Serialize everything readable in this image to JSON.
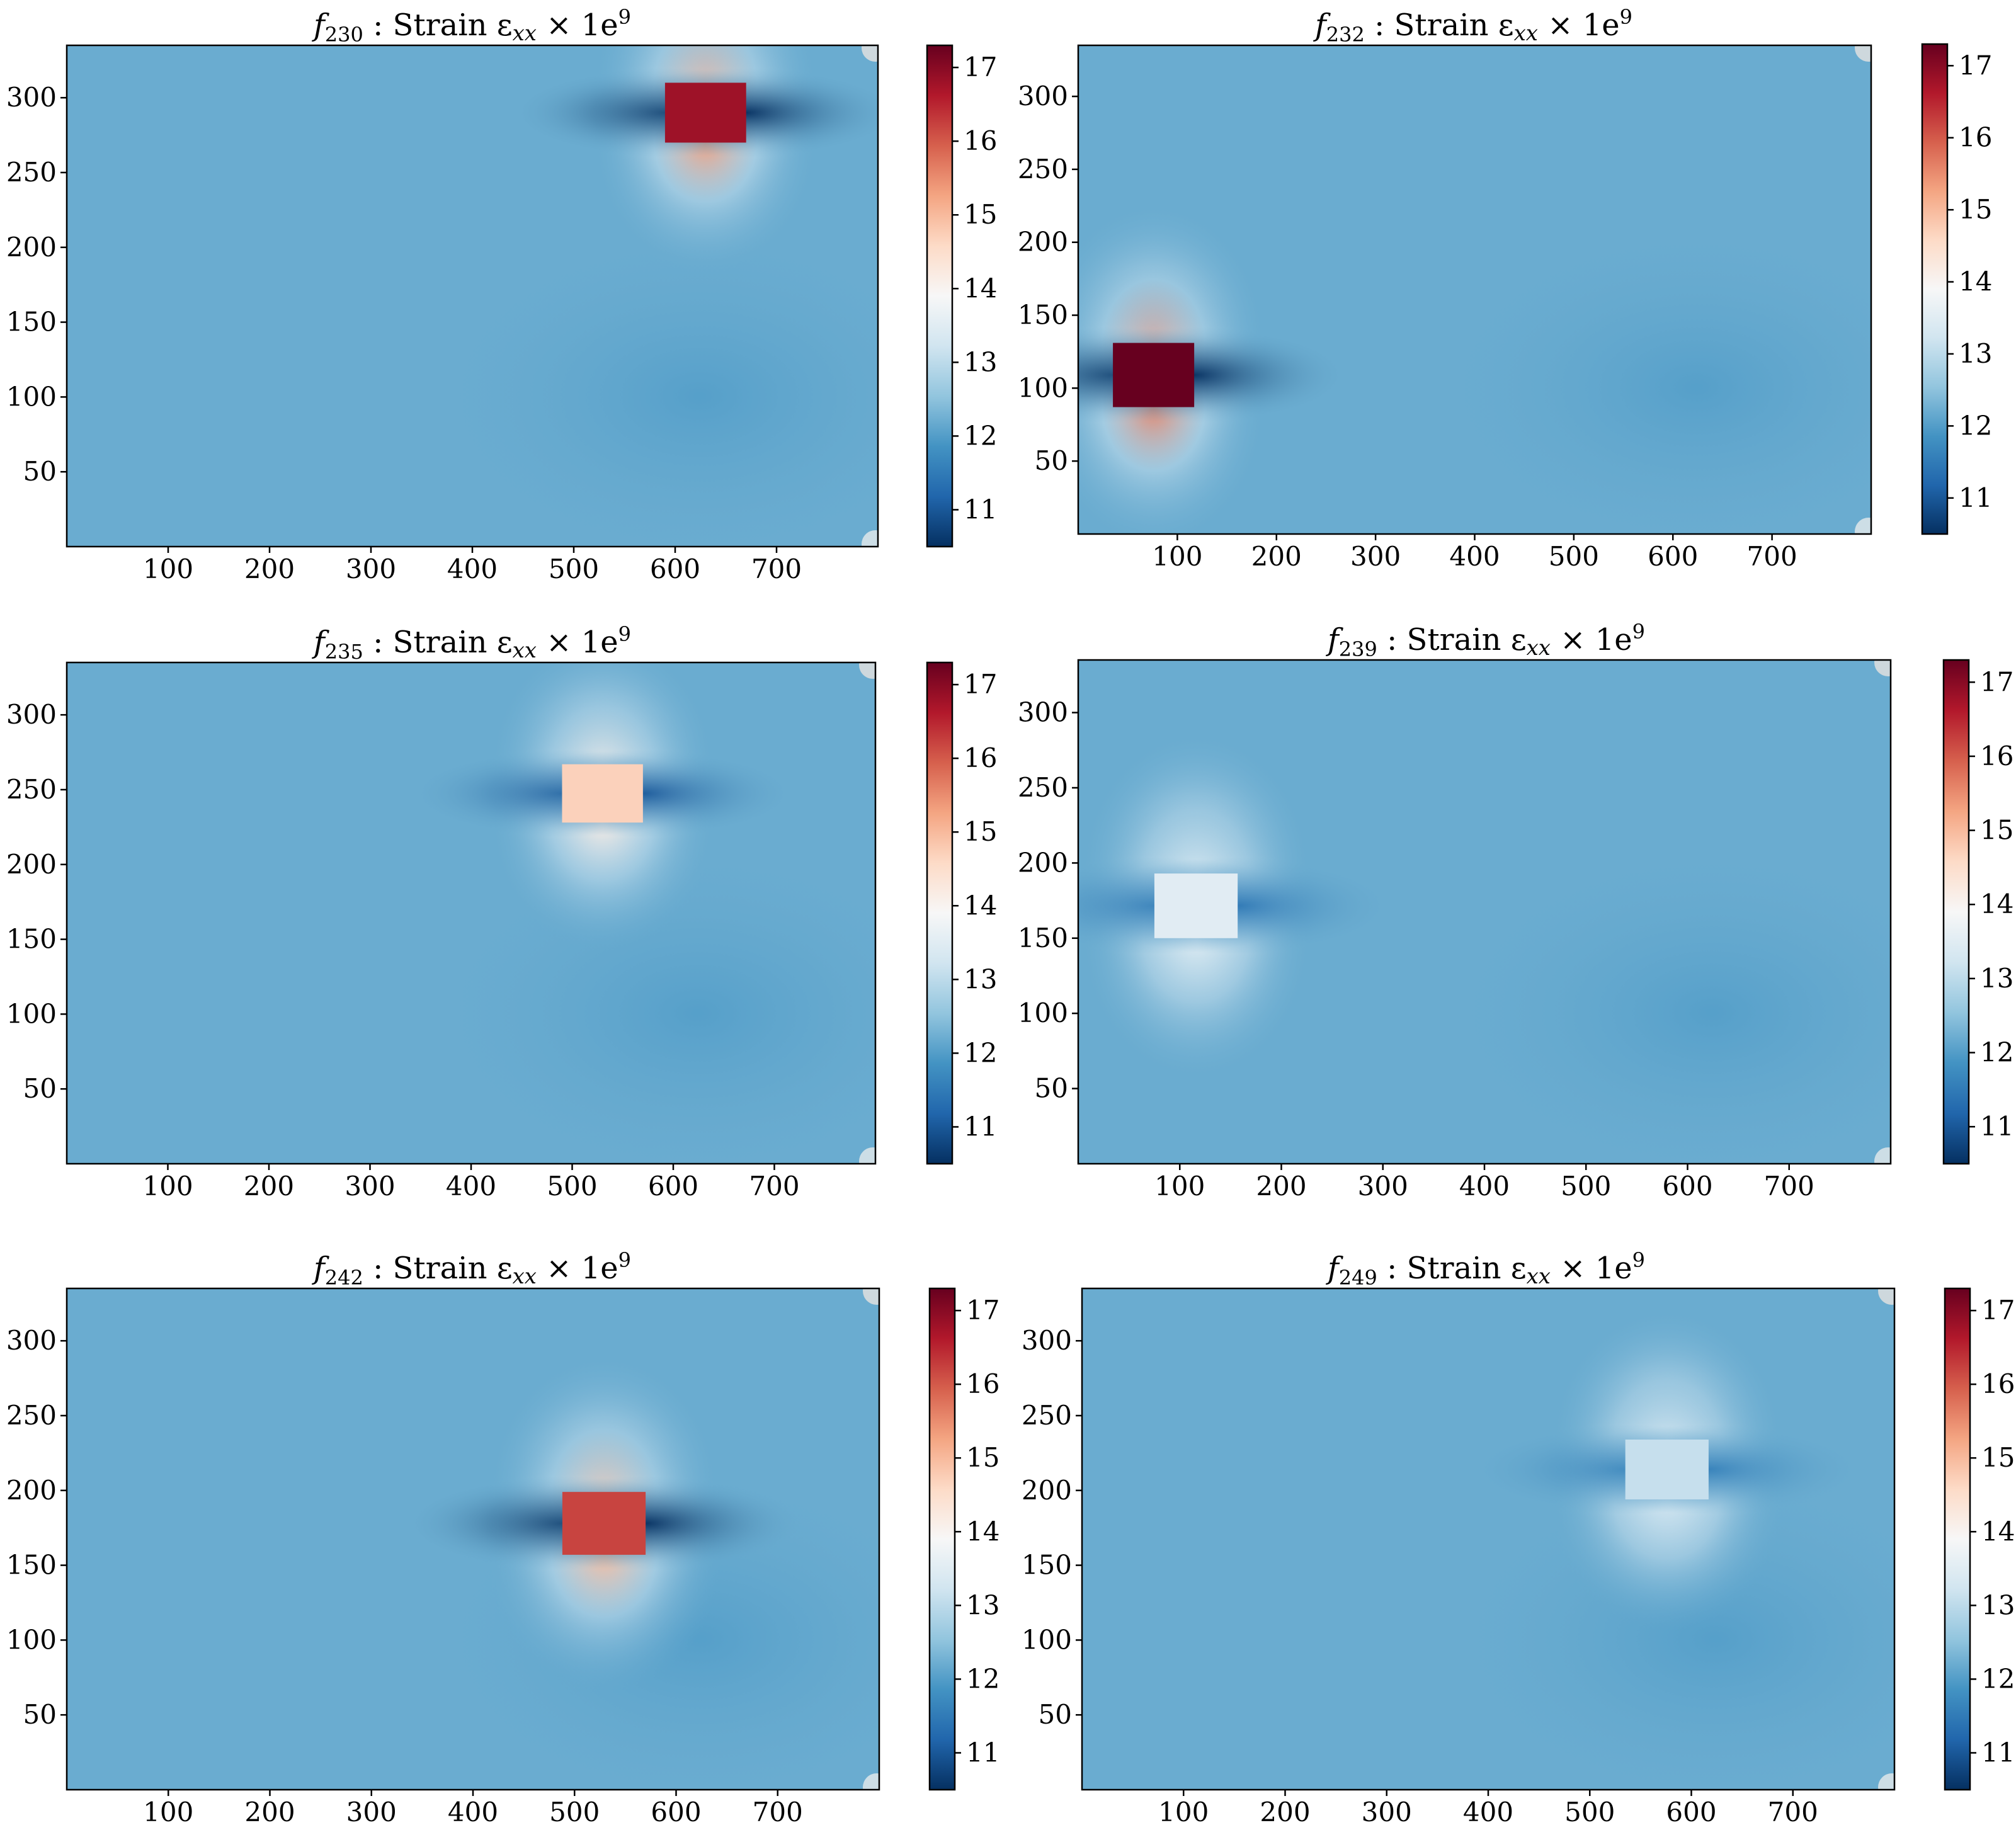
{
  "colormap": {
    "name": "RdBu_r",
    "stops": [
      {
        "t": 0.0,
        "color": "#053061"
      },
      {
        "t": 0.1,
        "color": "#2166ac"
      },
      {
        "t": 0.2,
        "color": "#4393c3"
      },
      {
        "t": 0.3,
        "color": "#92c5de"
      },
      {
        "t": 0.4,
        "color": "#d1e5f0"
      },
      {
        "t": 0.5,
        "color": "#f7f7f7"
      },
      {
        "t": 0.6,
        "color": "#fddbc7"
      },
      {
        "t": 0.7,
        "color": "#f4a582"
      },
      {
        "t": 0.8,
        "color": "#d6604d"
      },
      {
        "t": 0.9,
        "color": "#b2182b"
      },
      {
        "t": 1.0,
        "color": "#67001f"
      }
    ]
  },
  "chart_data": [
    {
      "type": "heatmap",
      "title_prefix": "f",
      "title_subscript": "230",
      "title_main": " :  Strain ε",
      "title_var_subscript": "xx",
      "title_suffix": " × 1e",
      "title_exponent": "9",
      "x_ticks": [
        "100",
        "200",
        "300",
        "400",
        "500",
        "600",
        "700"
      ],
      "y_ticks": [
        "50",
        "100",
        "150",
        "200",
        "250",
        "300"
      ],
      "xlim": [
        0,
        800
      ],
      "ylim": [
        0,
        335
      ],
      "colorbar_ticks": [
        "11",
        "12",
        "13",
        "14",
        "15",
        "16",
        "17"
      ],
      "colorbar_range": [
        10.5,
        17.3
      ],
      "background_value": 12.2,
      "inclusion": {
        "x0": 590,
        "x1": 670,
        "y0": 270,
        "y1": 310,
        "value": 16.8
      }
    },
    {
      "type": "heatmap",
      "title_prefix": "f",
      "title_subscript": "232",
      "title_main": " :  Strain ε",
      "title_var_subscript": "xx",
      "title_suffix": " × 1e",
      "title_exponent": "9",
      "x_ticks": [
        "100",
        "200",
        "300",
        "400",
        "500",
        "600",
        "700"
      ],
      "y_ticks": [
        "50",
        "100",
        "150",
        "200",
        "250",
        "300"
      ],
      "xlim": [
        0,
        800
      ],
      "ylim": [
        0,
        335
      ],
      "colorbar_ticks": [
        "11",
        "12",
        "13",
        "14",
        "15",
        "16",
        "17"
      ],
      "colorbar_range": [
        10.5,
        17.3
      ],
      "background_value": 12.2,
      "inclusion": {
        "x0": 35,
        "x1": 117,
        "y0": 87,
        "y1": 131,
        "value": 17.3
      }
    },
    {
      "type": "heatmap",
      "title_prefix": "f",
      "title_subscript": "235",
      "title_main": " :  Strain ε",
      "title_var_subscript": "xx",
      "title_suffix": " × 1e",
      "title_exponent": "9",
      "x_ticks": [
        "100",
        "200",
        "300",
        "400",
        "500",
        "600",
        "700"
      ],
      "y_ticks": [
        "50",
        "100",
        "150",
        "200",
        "250",
        "300"
      ],
      "xlim": [
        0,
        800
      ],
      "ylim": [
        0,
        335
      ],
      "colorbar_ticks": [
        "11",
        "12",
        "13",
        "14",
        "15",
        "16",
        "17"
      ],
      "colorbar_range": [
        10.5,
        17.3
      ],
      "background_value": 12.2,
      "inclusion": {
        "x0": 490,
        "x1": 570,
        "y0": 228,
        "y1": 267,
        "value": 14.7
      }
    },
    {
      "type": "heatmap",
      "title_prefix": "f",
      "title_subscript": "239",
      "title_main": " :  Strain ε",
      "title_var_subscript": "xx",
      "title_suffix": " × 1e",
      "title_exponent": "9",
      "x_ticks": [
        "100",
        "200",
        "300",
        "400",
        "500",
        "600",
        "700"
      ],
      "y_ticks": [
        "50",
        "100",
        "150",
        "200",
        "250",
        "300"
      ],
      "xlim": [
        0,
        800
      ],
      "ylim": [
        0,
        335
      ],
      "colorbar_ticks": [
        "11",
        "12",
        "13",
        "14",
        "15",
        "16",
        "17"
      ],
      "colorbar_range": [
        10.5,
        17.3
      ],
      "background_value": 12.2,
      "inclusion": {
        "x0": 75,
        "x1": 157,
        "y0": 150,
        "y1": 193,
        "value": 13.5
      }
    },
    {
      "type": "heatmap",
      "title_prefix": "f",
      "title_subscript": "242",
      "title_main": " :  Strain ε",
      "title_var_subscript": "xx",
      "title_suffix": " × 1e",
      "title_exponent": "9",
      "x_ticks": [
        "100",
        "200",
        "300",
        "400",
        "500",
        "600",
        "700"
      ],
      "y_ticks": [
        "50",
        "100",
        "150",
        "200",
        "250",
        "300"
      ],
      "xlim": [
        0,
        800
      ],
      "ylim": [
        0,
        335
      ],
      "colorbar_ticks": [
        "11",
        "12",
        "13",
        "14",
        "15",
        "16",
        "17"
      ],
      "colorbar_range": [
        10.5,
        17.3
      ],
      "background_value": 12.2,
      "inclusion": {
        "x0": 488,
        "x1": 570,
        "y0": 157,
        "y1": 199,
        "value": 16.2
      }
    },
    {
      "type": "heatmap",
      "title_prefix": "f",
      "title_subscript": "249",
      "title_main": " :  Strain ε",
      "title_var_subscript": "xx",
      "title_suffix": " × 1e",
      "title_exponent": "9",
      "x_ticks": [
        "100",
        "200",
        "300",
        "400",
        "500",
        "600",
        "700"
      ],
      "y_ticks": [
        "50",
        "100",
        "150",
        "200",
        "250",
        "300"
      ],
      "xlim": [
        0,
        800
      ],
      "ylim": [
        0,
        335
      ],
      "colorbar_ticks": [
        "11",
        "12",
        "13",
        "14",
        "15",
        "16",
        "17"
      ],
      "colorbar_range": [
        10.5,
        17.3
      ],
      "background_value": 12.2,
      "inclusion": {
        "x0": 535,
        "x1": 617,
        "y0": 194,
        "y1": 234,
        "value": 13.1
      }
    }
  ]
}
